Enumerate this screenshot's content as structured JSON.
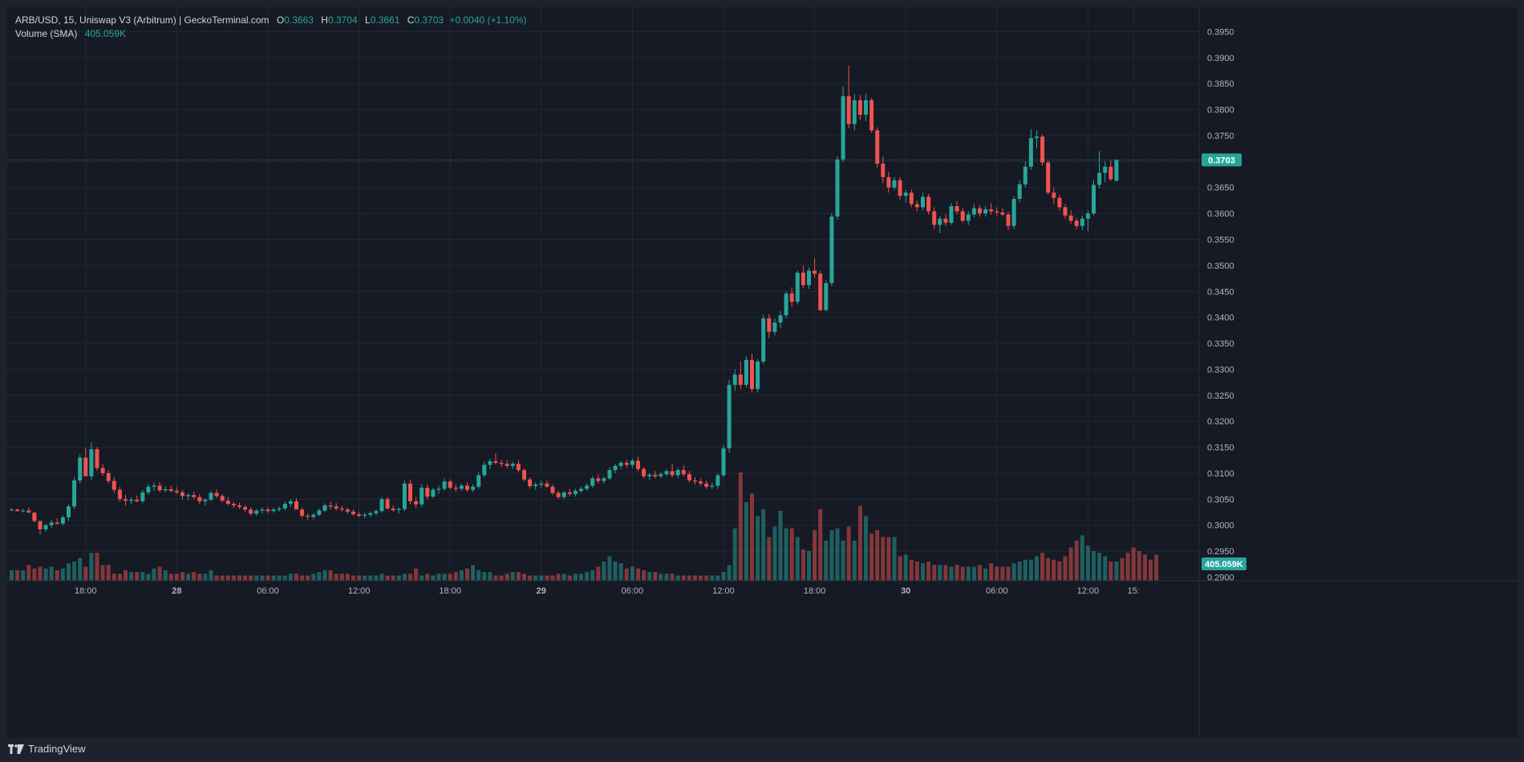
{
  "legend": {
    "symbol": "ARB/USD, 15, Uniswap V3 (Arbitrum) | GeckoTerminal.com",
    "open_label": "O",
    "open": "0.3663",
    "high_label": "H",
    "high": "0.3704",
    "low_label": "L",
    "low": "0.3661",
    "close_label": "C",
    "close": "0.3703",
    "change": "+0.0040 (+1.10%)",
    "volume_label": "Volume (SMA)",
    "volume_value": "405.059K"
  },
  "price_badge": "0.3703",
  "volume_badge": "405.059K",
  "footer": {
    "brand": "TradingView"
  },
  "colors": {
    "up": "#26a69a",
    "down": "#ef5350",
    "background": "#161a25",
    "grid": "#232733",
    "text": "#b2b5be"
  },
  "chart_data": {
    "type": "candlestick",
    "title": "ARB/USD, 15, Uniswap V3 (Arbitrum)",
    "y_ticks": [
      "0.2900",
      "0.2950",
      "0.3000",
      "0.3050",
      "0.3100",
      "0.3150",
      "0.3200",
      "0.3250",
      "0.3300",
      "0.3350",
      "0.3400",
      "0.3450",
      "0.3500",
      "0.3550",
      "0.3600",
      "0.3650",
      "0.3700",
      "0.3750",
      "0.3800",
      "0.3850",
      "0.3900",
      "0.3950"
    ],
    "ylim": [
      0.2893,
      0.3997
    ],
    "x_ticks": [
      "18:00",
      "28",
      "06:00",
      "12:00",
      "18:00",
      "29",
      "06:00",
      "12:00",
      "18:00",
      "30",
      "06:00",
      "12:00",
      "15:"
    ],
    "x_tick_bars": [
      13,
      29,
      45,
      61,
      77,
      93,
      109,
      125,
      141,
      157,
      173,
      189,
      197
    ],
    "last_price": 0.3703,
    "bars": [
      [
        0.303,
        0.3033,
        0.3027,
        0.303
      ],
      [
        0.303,
        0.3032,
        0.3026,
        0.3027
      ],
      [
        0.3027,
        0.3031,
        0.3024,
        0.3028
      ],
      [
        0.3028,
        0.3034,
        0.3024,
        0.3024
      ],
      [
        0.3024,
        0.3025,
        0.3005,
        0.3008
      ],
      [
        0.3008,
        0.3008,
        0.2982,
        0.2992
      ],
      [
        0.2992,
        0.3002,
        0.2987,
        0.3
      ],
      [
        0.3,
        0.301,
        0.2994,
        0.3005
      ],
      [
        0.3005,
        0.3013,
        0.3001,
        0.3003
      ],
      [
        0.3003,
        0.3019,
        0.3,
        0.3015
      ],
      [
        0.3015,
        0.304,
        0.3008,
        0.3036
      ],
      [
        0.3036,
        0.3093,
        0.3031,
        0.3086
      ],
      [
        0.3086,
        0.3136,
        0.308,
        0.313
      ],
      [
        0.313,
        0.3149,
        0.31,
        0.3094
      ],
      [
        0.3094,
        0.316,
        0.3087,
        0.3146
      ],
      [
        0.3146,
        0.315,
        0.3105,
        0.311
      ],
      [
        0.311,
        0.3118,
        0.3095,
        0.31
      ],
      [
        0.31,
        0.3106,
        0.308,
        0.3085
      ],
      [
        0.3085,
        0.3093,
        0.3062,
        0.3068
      ],
      [
        0.3068,
        0.3074,
        0.3045,
        0.305
      ],
      [
        0.305,
        0.3058,
        0.3038,
        0.3047
      ],
      [
        0.3047,
        0.3054,
        0.304,
        0.3049
      ],
      [
        0.3049,
        0.3057,
        0.3044,
        0.3046
      ],
      [
        0.3046,
        0.3068,
        0.3042,
        0.3063
      ],
      [
        0.3063,
        0.3079,
        0.3058,
        0.3074
      ],
      [
        0.3074,
        0.3082,
        0.3066,
        0.3076
      ],
      [
        0.3076,
        0.3083,
        0.3063,
        0.3067
      ],
      [
        0.3067,
        0.3075,
        0.3063,
        0.3069
      ],
      [
        0.3069,
        0.3076,
        0.3063,
        0.3066
      ],
      [
        0.3066,
        0.3073,
        0.306,
        0.3063
      ],
      [
        0.3063,
        0.3068,
        0.3049,
        0.3056
      ],
      [
        0.3056,
        0.3061,
        0.3048,
        0.3058
      ],
      [
        0.3058,
        0.3065,
        0.305,
        0.3054
      ],
      [
        0.3054,
        0.306,
        0.3041,
        0.3046
      ],
      [
        0.3046,
        0.3052,
        0.3038,
        0.3049
      ],
      [
        0.3049,
        0.3066,
        0.3046,
        0.3062
      ],
      [
        0.3062,
        0.3069,
        0.3052,
        0.3056
      ],
      [
        0.3056,
        0.306,
        0.3044,
        0.3047
      ],
      [
        0.3047,
        0.3054,
        0.3038,
        0.3041
      ],
      [
        0.3041,
        0.3045,
        0.3033,
        0.3038
      ],
      [
        0.3038,
        0.3043,
        0.3031,
        0.3035
      ],
      [
        0.3035,
        0.3039,
        0.3026,
        0.303
      ],
      [
        0.303,
        0.3035,
        0.3018,
        0.3022
      ],
      [
        0.3022,
        0.3031,
        0.3018,
        0.3028
      ],
      [
        0.3028,
        0.3034,
        0.3023,
        0.303
      ],
      [
        0.303,
        0.3034,
        0.3023,
        0.3027
      ],
      [
        0.3027,
        0.3034,
        0.3024,
        0.303
      ],
      [
        0.303,
        0.3036,
        0.3026,
        0.3032
      ],
      [
        0.3032,
        0.3046,
        0.3028,
        0.3041
      ],
      [
        0.3041,
        0.305,
        0.3035,
        0.3046
      ],
      [
        0.3046,
        0.3052,
        0.3038,
        0.303
      ],
      [
        0.303,
        0.3034,
        0.3014,
        0.3018
      ],
      [
        0.3018,
        0.3022,
        0.301,
        0.3016
      ],
      [
        0.3016,
        0.3023,
        0.3011,
        0.302
      ],
      [
        0.302,
        0.3032,
        0.3017,
        0.3028
      ],
      [
        0.3028,
        0.3042,
        0.3025,
        0.3038
      ],
      [
        0.3038,
        0.3045,
        0.303,
        0.3036
      ],
      [
        0.3036,
        0.3042,
        0.3028,
        0.3032
      ],
      [
        0.3032,
        0.3038,
        0.3026,
        0.303
      ],
      [
        0.303,
        0.3034,
        0.3022,
        0.3026
      ],
      [
        0.3026,
        0.303,
        0.3018,
        0.3021
      ],
      [
        0.3021,
        0.3026,
        0.3015,
        0.3018
      ],
      [
        0.3018,
        0.3024,
        0.3013,
        0.302
      ],
      [
        0.302,
        0.3026,
        0.3016,
        0.3023
      ],
      [
        0.3023,
        0.303,
        0.3019,
        0.3027
      ],
      [
        0.3027,
        0.3054,
        0.3024,
        0.305
      ],
      [
        0.305,
        0.3054,
        0.3029,
        0.3032
      ],
      [
        0.3032,
        0.3038,
        0.3026,
        0.3029
      ],
      [
        0.3029,
        0.3034,
        0.3022,
        0.3031
      ],
      [
        0.3031,
        0.3086,
        0.3027,
        0.308
      ],
      [
        0.308,
        0.3087,
        0.304,
        0.3046
      ],
      [
        0.3046,
        0.3054,
        0.3033,
        0.304
      ],
      [
        0.304,
        0.3079,
        0.3035,
        0.3072
      ],
      [
        0.3072,
        0.3078,
        0.3049,
        0.3055
      ],
      [
        0.3055,
        0.3072,
        0.3052,
        0.3068
      ],
      [
        0.3068,
        0.3076,
        0.306,
        0.307
      ],
      [
        0.307,
        0.309,
        0.3066,
        0.3084
      ],
      [
        0.3084,
        0.3088,
        0.3068,
        0.3072
      ],
      [
        0.3072,
        0.3079,
        0.3064,
        0.307
      ],
      [
        0.307,
        0.308,
        0.3066,
        0.3076
      ],
      [
        0.3076,
        0.3082,
        0.3064,
        0.3068
      ],
      [
        0.3068,
        0.3079,
        0.3064,
        0.3074
      ],
      [
        0.3074,
        0.3102,
        0.307,
        0.3096
      ],
      [
        0.3096,
        0.3122,
        0.3092,
        0.3116
      ],
      [
        0.3116,
        0.3128,
        0.3108,
        0.3123
      ],
      [
        0.3123,
        0.3138,
        0.3117,
        0.312
      ],
      [
        0.312,
        0.3126,
        0.3112,
        0.3118
      ],
      [
        0.3118,
        0.3125,
        0.311,
        0.3114
      ],
      [
        0.3114,
        0.3122,
        0.3108,
        0.3118
      ],
      [
        0.3118,
        0.3125,
        0.3102,
        0.3106
      ],
      [
        0.3106,
        0.311,
        0.3084,
        0.3088
      ],
      [
        0.3088,
        0.3092,
        0.307,
        0.3075
      ],
      [
        0.3075,
        0.3082,
        0.3068,
        0.3078
      ],
      [
        0.3078,
        0.3086,
        0.3072,
        0.308
      ],
      [
        0.308,
        0.3086,
        0.3072,
        0.3074
      ],
      [
        0.3074,
        0.3078,
        0.3058,
        0.3062
      ],
      [
        0.3062,
        0.3066,
        0.305,
        0.3054
      ],
      [
        0.3054,
        0.3066,
        0.305,
        0.3063
      ],
      [
        0.3063,
        0.307,
        0.3056,
        0.306
      ],
      [
        0.306,
        0.307,
        0.3055,
        0.3066
      ],
      [
        0.3066,
        0.3074,
        0.3062,
        0.307
      ],
      [
        0.307,
        0.308,
        0.3066,
        0.3076
      ],
      [
        0.3076,
        0.3094,
        0.3072,
        0.309
      ],
      [
        0.309,
        0.3098,
        0.308,
        0.3085
      ],
      [
        0.3085,
        0.3094,
        0.308,
        0.309
      ],
      [
        0.309,
        0.3112,
        0.3086,
        0.3106
      ],
      [
        0.3106,
        0.3118,
        0.31,
        0.3114
      ],
      [
        0.3114,
        0.3124,
        0.3108,
        0.312
      ],
      [
        0.312,
        0.3126,
        0.311,
        0.3116
      ],
      [
        0.3116,
        0.3128,
        0.311,
        0.3124
      ],
      [
        0.3124,
        0.3132,
        0.3104,
        0.3108
      ],
      [
        0.3108,
        0.3112,
        0.309,
        0.3094
      ],
      [
        0.3094,
        0.31,
        0.3086,
        0.3097
      ],
      [
        0.3097,
        0.3104,
        0.309,
        0.3094
      ],
      [
        0.3094,
        0.3102,
        0.309,
        0.3098
      ],
      [
        0.3098,
        0.3108,
        0.3094,
        0.3104
      ],
      [
        0.3104,
        0.3118,
        0.3092,
        0.3096
      ],
      [
        0.3096,
        0.311,
        0.309,
        0.3106
      ],
      [
        0.3106,
        0.3115,
        0.3094,
        0.3098
      ],
      [
        0.3098,
        0.3104,
        0.3082,
        0.3086
      ],
      [
        0.3086,
        0.3092,
        0.3078,
        0.3084
      ],
      [
        0.3084,
        0.309,
        0.3076,
        0.308
      ],
      [
        0.308,
        0.3086,
        0.307,
        0.3074
      ],
      [
        0.3074,
        0.3082,
        0.307,
        0.3076
      ],
      [
        0.3076,
        0.31,
        0.307,
        0.3096
      ],
      [
        0.3096,
        0.3155,
        0.3092,
        0.3148
      ],
      [
        0.3148,
        0.328,
        0.314,
        0.327
      ],
      [
        0.327,
        0.33,
        0.3258,
        0.329
      ],
      [
        0.329,
        0.3315,
        0.3262,
        0.327
      ],
      [
        0.327,
        0.3325,
        0.3265,
        0.3318
      ],
      [
        0.3318,
        0.333,
        0.3255,
        0.3262
      ],
      [
        0.3262,
        0.332,
        0.3256,
        0.3315
      ],
      [
        0.3315,
        0.3405,
        0.331,
        0.3398
      ],
      [
        0.3398,
        0.3406,
        0.336,
        0.3372
      ],
      [
        0.3372,
        0.3398,
        0.3365,
        0.339
      ],
      [
        0.339,
        0.3412,
        0.338,
        0.3404
      ],
      [
        0.3404,
        0.345,
        0.3398,
        0.3446
      ],
      [
        0.3446,
        0.3458,
        0.342,
        0.343
      ],
      [
        0.343,
        0.349,
        0.3425,
        0.3486
      ],
      [
        0.3486,
        0.35,
        0.3456,
        0.3462
      ],
      [
        0.3462,
        0.3496,
        0.3455,
        0.349
      ],
      [
        0.349,
        0.3514,
        0.3476,
        0.3484
      ],
      [
        0.3484,
        0.349,
        0.3412,
        0.3414
      ],
      [
        0.3414,
        0.3472,
        0.3412,
        0.3466
      ],
      [
        0.3466,
        0.36,
        0.346,
        0.3594
      ],
      [
        0.3594,
        0.371,
        0.3588,
        0.3704
      ],
      [
        0.3704,
        0.3845,
        0.3698,
        0.3826
      ],
      [
        0.3826,
        0.3885,
        0.3764,
        0.3772
      ],
      [
        0.3772,
        0.383,
        0.376,
        0.3818
      ],
      [
        0.3818,
        0.3828,
        0.378,
        0.379
      ],
      [
        0.379,
        0.383,
        0.3778,
        0.3818
      ],
      [
        0.3818,
        0.3822,
        0.3755,
        0.376
      ],
      [
        0.376,
        0.3766,
        0.3688,
        0.3696
      ],
      [
        0.3696,
        0.371,
        0.3658,
        0.367
      ],
      [
        0.367,
        0.368,
        0.364,
        0.365
      ],
      [
        0.365,
        0.367,
        0.3645,
        0.3664
      ],
      [
        0.3664,
        0.367,
        0.3626,
        0.3634
      ],
      [
        0.3634,
        0.3646,
        0.362,
        0.364
      ],
      [
        0.364,
        0.3646,
        0.3612,
        0.3618
      ],
      [
        0.3618,
        0.3625,
        0.3604,
        0.3612
      ],
      [
        0.3612,
        0.364,
        0.3606,
        0.3632
      ],
      [
        0.3632,
        0.3638,
        0.3598,
        0.3604
      ],
      [
        0.3604,
        0.3612,
        0.357,
        0.3578
      ],
      [
        0.3578,
        0.3595,
        0.3562,
        0.359
      ],
      [
        0.359,
        0.3598,
        0.3576,
        0.3582
      ],
      [
        0.3582,
        0.362,
        0.3578,
        0.3614
      ],
      [
        0.3614,
        0.3624,
        0.3598,
        0.3604
      ],
      [
        0.3604,
        0.361,
        0.3582,
        0.3586
      ],
      [
        0.3586,
        0.3604,
        0.3578,
        0.3598
      ],
      [
        0.3598,
        0.3618,
        0.3592,
        0.361
      ],
      [
        0.361,
        0.3616,
        0.3594,
        0.36
      ],
      [
        0.36,
        0.3614,
        0.3594,
        0.3608
      ],
      [
        0.3608,
        0.362,
        0.3598,
        0.3604
      ],
      [
        0.3604,
        0.3612,
        0.3596,
        0.3602
      ],
      [
        0.3602,
        0.361,
        0.3594,
        0.3598
      ],
      [
        0.3598,
        0.3604,
        0.3568,
        0.3576
      ],
      [
        0.3576,
        0.3634,
        0.357,
        0.3628
      ],
      [
        0.3628,
        0.3664,
        0.3622,
        0.3656
      ],
      [
        0.3656,
        0.37,
        0.365,
        0.369
      ],
      [
        0.369,
        0.3762,
        0.3684,
        0.3745
      ],
      [
        0.3745,
        0.376,
        0.3725,
        0.3748
      ],
      [
        0.3748,
        0.3752,
        0.3692,
        0.3698
      ],
      [
        0.3698,
        0.3702,
        0.3636,
        0.364
      ],
      [
        0.364,
        0.365,
        0.3618,
        0.363
      ],
      [
        0.363,
        0.3636,
        0.3606,
        0.3612
      ],
      [
        0.3612,
        0.3618,
        0.359,
        0.3596
      ],
      [
        0.3596,
        0.3606,
        0.358,
        0.3586
      ],
      [
        0.3586,
        0.3592,
        0.357,
        0.3576
      ],
      [
        0.3576,
        0.3596,
        0.3568,
        0.359
      ],
      [
        0.359,
        0.3606,
        0.3566,
        0.36
      ],
      [
        0.36,
        0.3664,
        0.3596,
        0.3655
      ],
      [
        0.3655,
        0.372,
        0.3648,
        0.3678
      ],
      [
        0.3678,
        0.37,
        0.366,
        0.369
      ],
      [
        0.369,
        0.3702,
        0.3662,
        0.3666
      ],
      [
        0.3663,
        0.3704,
        0.3661,
        0.3703
      ]
    ],
    "volume": [
      6,
      6,
      6,
      9,
      7,
      8,
      7,
      8,
      6,
      7,
      10,
      11,
      13,
      8,
      16,
      16,
      9,
      9,
      4,
      4,
      6,
      5,
      5,
      5,
      4,
      7,
      8,
      6,
      4,
      4,
      5,
      4,
      5,
      4,
      4,
      6,
      3,
      3,
      3,
      3,
      3,
      3,
      3,
      3,
      3,
      3,
      3,
      3,
      3,
      4,
      4,
      3,
      3,
      4,
      5,
      6,
      6,
      4,
      4,
      4,
      3,
      3,
      3,
      3,
      3,
      4,
      3,
      3,
      3,
      4,
      4,
      7,
      3,
      4,
      3,
      4,
      4,
      4,
      5,
      6,
      7,
      9,
      6,
      5,
      5,
      3,
      3,
      4,
      5,
      5,
      4,
      3,
      3,
      3,
      3,
      3,
      4,
      4,
      3,
      4,
      4,
      5,
      6,
      8,
      11,
      14,
      11,
      10,
      7,
      8,
      7,
      6,
      5,
      5,
      4,
      4,
      4,
      3,
      3,
      3,
      3,
      3,
      3,
      3,
      3,
      5,
      9,
      30,
      62,
      45,
      50,
      37,
      41,
      25,
      31,
      40,
      30,
      30,
      25,
      18,
      17,
      29,
      41,
      23,
      29,
      30,
      23,
      31,
      23,
      43,
      37,
      27,
      29,
      25,
      25,
      25,
      14,
      15,
      12,
      11,
      10,
      11,
      9,
      9,
      9,
      8,
      9,
      8,
      8,
      8,
      9,
      7,
      10,
      8,
      8,
      8,
      10,
      11,
      12,
      12,
      14,
      16,
      13,
      12,
      11,
      14,
      19,
      23,
      26,
      20,
      17,
      16,
      14,
      11,
      11,
      13,
      16,
      19,
      17,
      15,
      12,
      15
    ]
  }
}
